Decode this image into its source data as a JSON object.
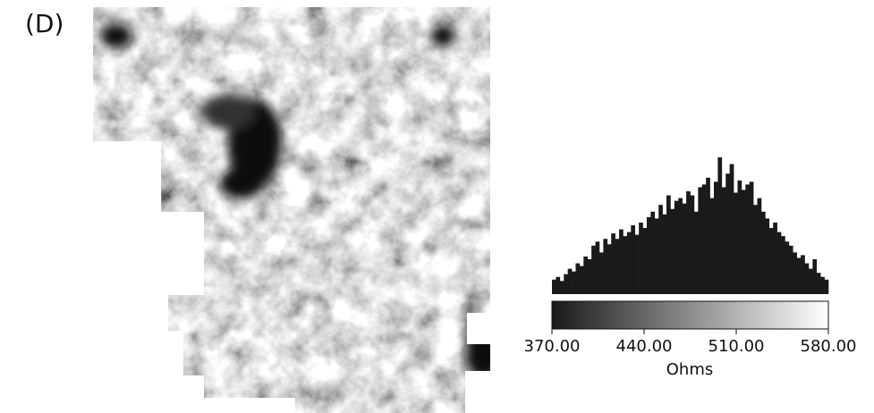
{
  "chart_data": {
    "type": "histogram",
    "panel_label": "(D)",
    "xlabel": "Ohms",
    "bins": [
      370,
      373,
      376,
      379,
      382,
      385,
      388,
      391,
      394,
      397,
      400,
      403,
      406,
      409,
      412,
      415,
      418,
      421,
      424,
      427,
      430,
      433,
      436,
      439,
      442,
      445,
      448,
      451,
      454,
      457,
      460,
      463,
      466,
      469,
      472,
      475,
      478,
      481,
      484,
      487,
      490,
      493,
      496,
      499,
      502,
      505,
      508,
      511,
      514,
      517,
      520,
      523,
      526,
      529,
      532,
      535,
      538,
      541,
      544,
      547,
      550,
      553,
      556,
      559,
      562,
      565,
      568,
      571,
      574,
      577,
      580
    ],
    "values": [
      10,
      12,
      9,
      14,
      18,
      16,
      22,
      20,
      27,
      25,
      35,
      38,
      30,
      40,
      36,
      44,
      40,
      47,
      42,
      45,
      50,
      43,
      52,
      48,
      56,
      60,
      55,
      65,
      58,
      72,
      62,
      68,
      70,
      66,
      75,
      72,
      60,
      78,
      80,
      85,
      70,
      82,
      100,
      78,
      88,
      95,
      74,
      83,
      76,
      80,
      82,
      65,
      70,
      60,
      55,
      48,
      52,
      45,
      42,
      38,
      35,
      30,
      26,
      28,
      22,
      18,
      25,
      15,
      12,
      10
    ],
    "color": "#1a1a1a",
    "colormap": [
      "#1a1a1a",
      "#ffffff"
    ],
    "xlim": [
      370,
      580
    ],
    "ylim": [
      0,
      100
    ],
    "xticks": [
      {
        "value": 370,
        "label": "370.00"
      },
      {
        "value": 440,
        "label": "440.00"
      },
      {
        "value": 510,
        "label": "510.00"
      },
      {
        "value": 580,
        "label": "580.00"
      }
    ]
  }
}
